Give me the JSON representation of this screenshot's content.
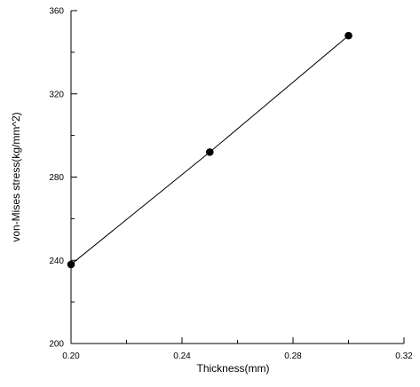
{
  "chart_data": {
    "type": "line",
    "xlabel": "Thickness(mm)",
    "ylabel": "von-Mises stress(kg/mm^2)",
    "xlim": [
      0.2,
      0.32
    ],
    "ylim": [
      200,
      360
    ],
    "x_ticks": [
      "0.20",
      "0.24",
      "0.28",
      "0.32"
    ],
    "y_ticks": [
      "200",
      "240",
      "280",
      "320",
      "360"
    ],
    "grid": false,
    "series": [
      {
        "x": [
          0.2,
          0.25,
          0.3
        ],
        "y": [
          238,
          292,
          348
        ],
        "marker": "circle",
        "color": "#000000"
      }
    ]
  }
}
